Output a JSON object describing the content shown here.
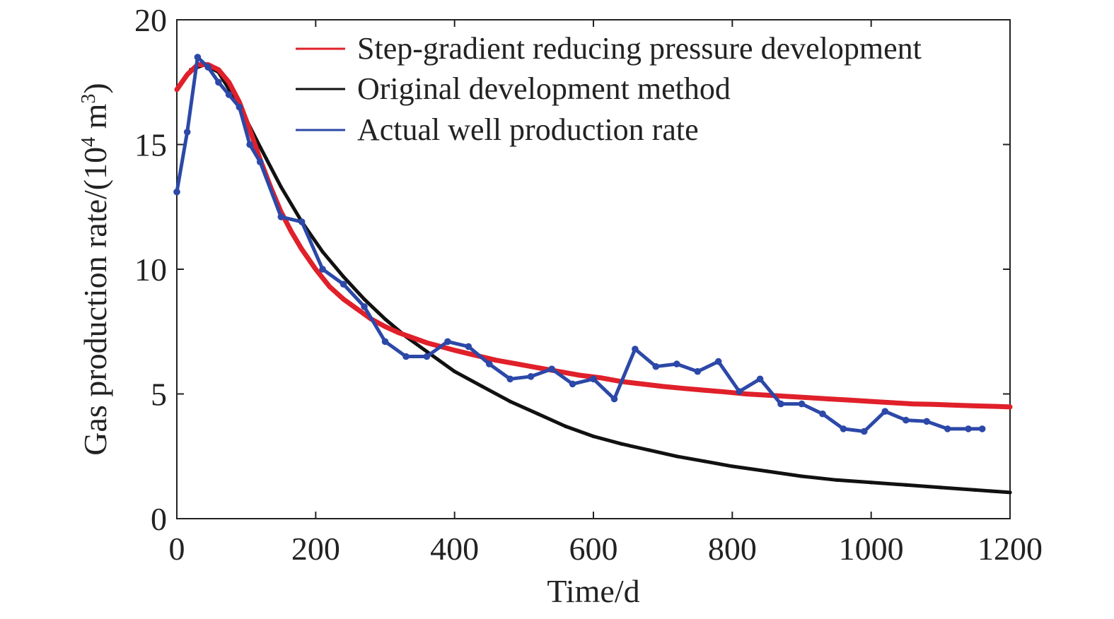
{
  "chart_data": {
    "type": "line",
    "xlabel": "Time/d",
    "ylabel_prefix": "Gas production rate/(10",
    "ylabel_sup": "4",
    "ylabel_suffix": " m",
    "ylabel_sup2": "3",
    "ylabel_end": ")",
    "xlim": [
      0,
      1200
    ],
    "ylim": [
      0,
      20
    ],
    "xticks": [
      0,
      200,
      400,
      600,
      800,
      1000,
      1200
    ],
    "yticks": [
      0,
      5,
      10,
      15,
      20
    ],
    "xtick_labels": [
      "0",
      "200",
      "400",
      "600",
      "800",
      "1000",
      "1200"
    ],
    "ytick_labels": [
      "0",
      "5",
      "10",
      "15",
      "20"
    ],
    "grid": false,
    "legend_position": "top-right",
    "series": [
      {
        "name": "Step-gradient reducing pressure development",
        "color": "#e0202a",
        "x": [
          0,
          15,
          30,
          45,
          60,
          75,
          90,
          105,
          120,
          135,
          150,
          165,
          180,
          200,
          220,
          240,
          260,
          280,
          300,
          320,
          340,
          360,
          380,
          400,
          430,
          460,
          490,
          520,
          550,
          580,
          610,
          640,
          670,
          700,
          730,
          760,
          790,
          820,
          850,
          880,
          910,
          940,
          970,
          1000,
          1030,
          1060,
          1090,
          1120,
          1150,
          1180,
          1200
        ],
        "y": [
          17.2,
          17.8,
          18.2,
          18.2,
          18.0,
          17.5,
          16.7,
          15.6,
          14.4,
          13.3,
          12.3,
          11.5,
          10.8,
          10.0,
          9.3,
          8.8,
          8.4,
          8.0,
          7.7,
          7.45,
          7.25,
          7.05,
          6.9,
          6.75,
          6.55,
          6.35,
          6.2,
          6.05,
          5.9,
          5.75,
          5.65,
          5.5,
          5.4,
          5.3,
          5.22,
          5.15,
          5.08,
          5.0,
          4.95,
          4.9,
          4.85,
          4.8,
          4.75,
          4.7,
          4.65,
          4.6,
          4.58,
          4.55,
          4.52,
          4.5,
          4.48
        ]
      },
      {
        "name": "Original development method",
        "color": "#111111",
        "x": [
          20,
          40,
          60,
          80,
          100,
          120,
          150,
          180,
          210,
          240,
          270,
          300,
          330,
          360,
          400,
          440,
          480,
          520,
          560,
          600,
          640,
          680,
          720,
          760,
          800,
          850,
          900,
          950,
          1000,
          1050,
          1100,
          1150,
          1200
        ],
        "y": [
          18.0,
          18.2,
          17.9,
          17.0,
          16.0,
          14.9,
          13.3,
          11.9,
          10.7,
          9.7,
          8.8,
          8.0,
          7.3,
          6.7,
          5.9,
          5.3,
          4.7,
          4.2,
          3.7,
          3.3,
          3.0,
          2.75,
          2.5,
          2.3,
          2.1,
          1.9,
          1.7,
          1.55,
          1.45,
          1.35,
          1.25,
          1.15,
          1.05
        ]
      },
      {
        "name": "Actual well production rate",
        "color": "#2c48a8",
        "x": [
          0,
          15,
          30,
          45,
          60,
          75,
          90,
          105,
          120,
          150,
          180,
          210,
          240,
          270,
          300,
          330,
          360,
          390,
          420,
          450,
          480,
          510,
          540,
          570,
          600,
          630,
          660,
          690,
          720,
          750,
          780,
          810,
          840,
          870,
          900,
          930,
          960,
          990,
          1020,
          1050,
          1080,
          1110,
          1140,
          1160
        ],
        "y": [
          13.1,
          15.5,
          18.5,
          18.1,
          17.5,
          17.0,
          16.5,
          15.0,
          14.3,
          12.1,
          11.9,
          10.0,
          9.4,
          8.5,
          7.1,
          6.5,
          6.5,
          7.1,
          6.9,
          6.2,
          5.6,
          5.7,
          6.0,
          5.4,
          5.6,
          4.8,
          6.8,
          6.1,
          6.2,
          5.9,
          6.3,
          5.1,
          5.6,
          4.6,
          4.6,
          4.2,
          3.6,
          3.5,
          4.3,
          3.95,
          3.9,
          3.6,
          3.6,
          3.6
        ]
      }
    ]
  }
}
